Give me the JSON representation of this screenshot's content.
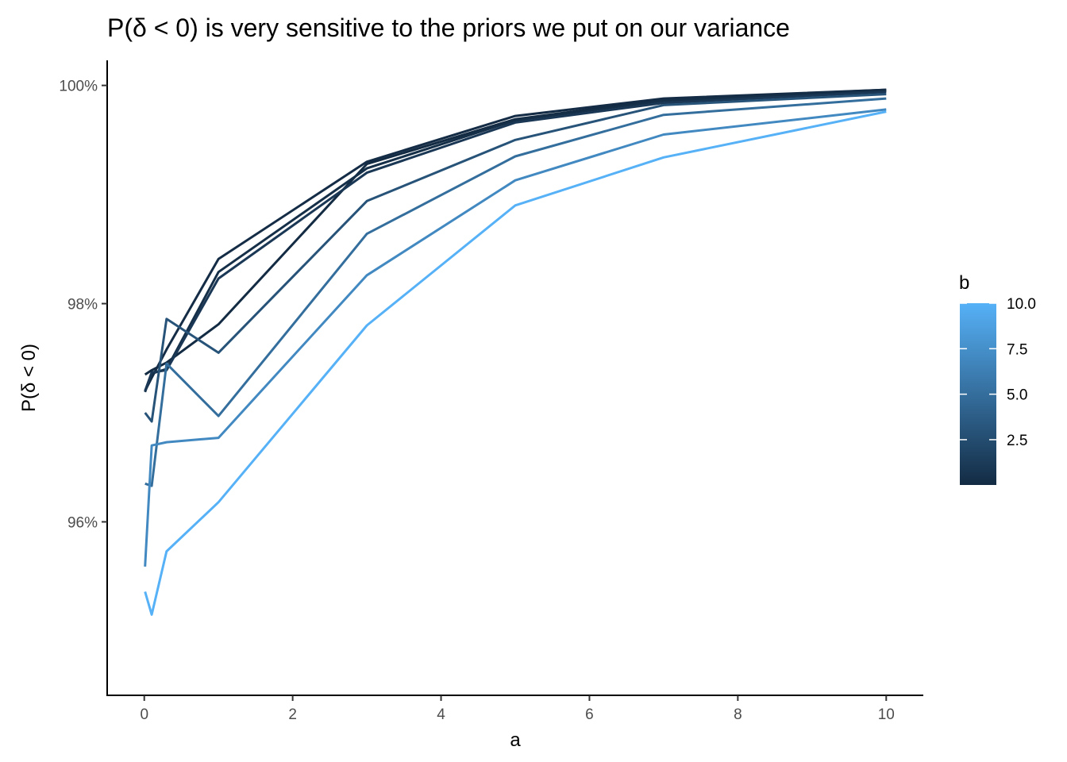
{
  "chart_data": {
    "type": "line",
    "title": "P(δ < 0) is very sensitive to the priors we put on our variance",
    "xlabel": "a",
    "ylabel": "P(δ < 0)",
    "x_ticks": [
      0,
      2,
      4,
      6,
      8,
      10
    ],
    "x_tick_labels": [
      "0",
      "2",
      "4",
      "6",
      "8",
      "10"
    ],
    "y_ticks": [
      0.96,
      0.98,
      1.0
    ],
    "y_tick_labels": [
      "96%",
      "98%",
      "100%"
    ],
    "xlim": [
      -0.5,
      10.5
    ],
    "ylim": [
      0.9441,
      1.0023
    ],
    "x": [
      0.01,
      0.1,
      0.3,
      1,
      3,
      5,
      7,
      10
    ],
    "series": [
      {
        "b": 0.01,
        "values": [
          0.9735,
          0.9739,
          0.9746,
          0.9781,
          0.9928,
          0.9969,
          0.9987,
          0.9996
        ]
      },
      {
        "b": 0.1,
        "values": [
          0.972,
          0.9732,
          0.9758,
          0.9841,
          0.993,
          0.9972,
          0.9988,
          0.9996
        ]
      },
      {
        "b": 0.3,
        "values": [
          0.9719,
          0.9736,
          0.974,
          0.9829,
          0.9924,
          0.9968,
          0.9986,
          0.9995
        ]
      },
      {
        "b": 1,
        "values": [
          0.972,
          0.9737,
          0.9739,
          0.9823,
          0.992,
          0.9966,
          0.9984,
          0.9994
        ]
      },
      {
        "b": 3,
        "values": [
          0.97,
          0.9692,
          0.9786,
          0.9755,
          0.9894,
          0.995,
          0.9982,
          0.9992
        ]
      },
      {
        "b": 5,
        "values": [
          0.9635,
          0.9633,
          0.9745,
          0.9697,
          0.9864,
          0.9935,
          0.9973,
          0.9988
        ]
      },
      {
        "b": 7,
        "values": [
          0.9559,
          0.967,
          0.9673,
          0.9677,
          0.9826,
          0.9913,
          0.9955,
          0.9978
        ]
      },
      {
        "b": 10,
        "values": [
          0.9536,
          0.9515,
          0.9573,
          0.9618,
          0.978,
          0.989,
          0.9934,
          0.9976
        ]
      }
    ],
    "legend": {
      "title": "b",
      "position": "right",
      "type": "colorbar",
      "breaks": [
        2.5,
        5.0,
        7.5,
        10.0
      ],
      "break_labels": [
        "2.5",
        "5.0",
        "7.5",
        "10.0"
      ],
      "range": [
        0.01,
        10
      ],
      "low_color": "#132b43",
      "high_color": "#56b1f7"
    },
    "grid": false
  }
}
